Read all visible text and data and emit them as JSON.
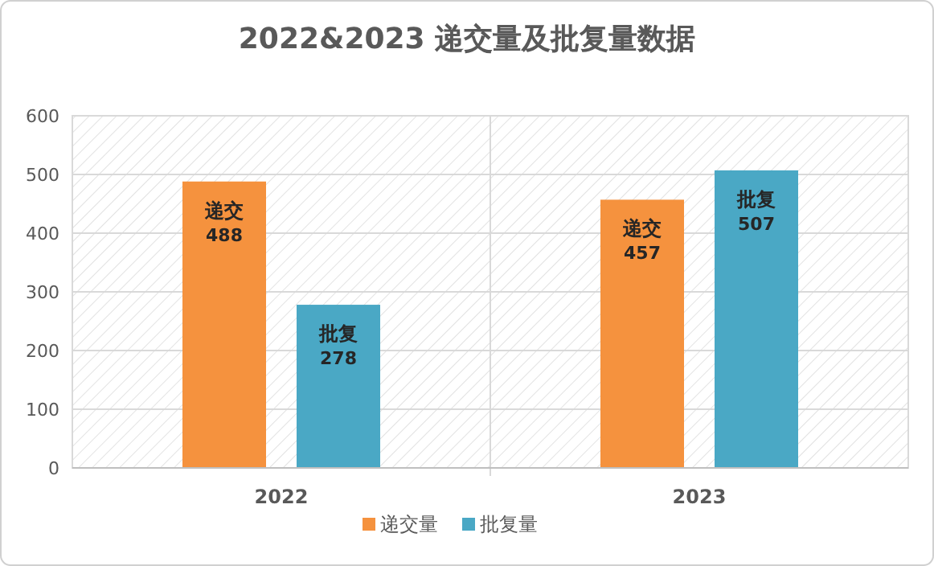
{
  "chart_data": {
    "type": "bar",
    "title": "2022&2023  递交量及批复量数据",
    "categories": [
      "2022",
      "2023"
    ],
    "series": [
      {
        "name": "递交量",
        "color": "#f5923e",
        "values": [
          488,
          457
        ],
        "value_labels": [
          "递交 488",
          "递交 457"
        ]
      },
      {
        "name": "批复量",
        "color": "#4aa8c5",
        "values": [
          278,
          507
        ],
        "value_labels": [
          "批复 278",
          "批复 507"
        ]
      }
    ],
    "ylim": [
      0,
      600
    ],
    "yticks": [
      0,
      100,
      200,
      300,
      400,
      500,
      600
    ],
    "grid": "y",
    "legend": "bottom"
  }
}
